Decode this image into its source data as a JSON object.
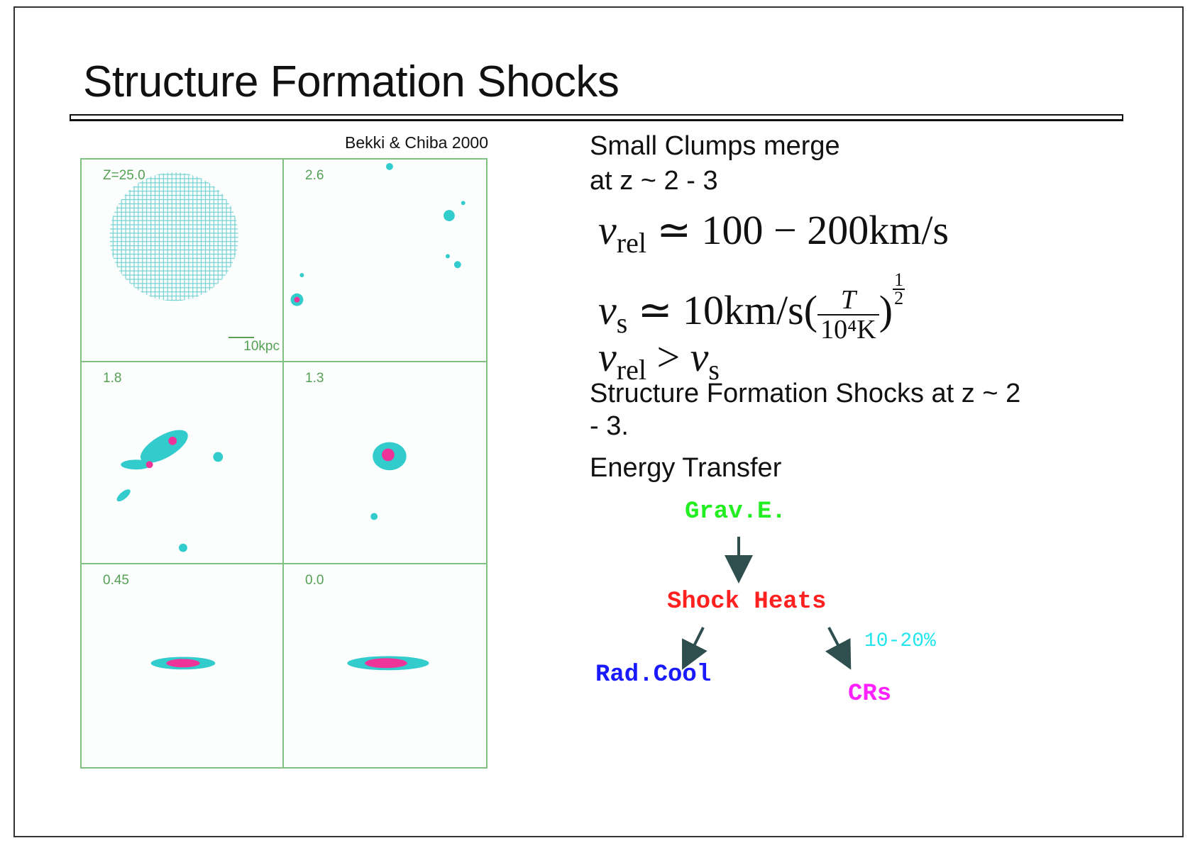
{
  "title": "Structure Formation Shocks",
  "credit": "Bekki & Chiba 2000",
  "panels": [
    {
      "label": "Z=25.0"
    },
    {
      "label": "2.6"
    },
    {
      "label": "1.8"
    },
    {
      "label": "1.3"
    },
    {
      "label": "0.45"
    },
    {
      "label": "0.0"
    }
  ],
  "scale_label": "10kpc",
  "bullets": {
    "clumps_line1": "Small Clumps merge",
    "clumps_line2": "at z ~ 2 - 3",
    "shocks_line1": "Structure Formation Shocks at z ~ 2",
    "shocks_line2": "- 3.",
    "energy": "Energy Transfer"
  },
  "equations": {
    "eq1": {
      "var": "v",
      "sub": "rel",
      "rel": "≃",
      "rhs": "100 − 200km/s"
    },
    "eq2": {
      "var": "v",
      "sub": "s",
      "rel": "≃",
      "rhs": "10km/s(",
      "frac_num": "T",
      "frac_den": "10⁴K",
      "close": ")",
      "exp_num": "1",
      "exp_den": "2"
    },
    "eq3": {
      "var": "v",
      "sub": "rel",
      "rel": ">",
      "var2": "v",
      "sub2": "s"
    }
  },
  "flow": {
    "grav": "Grav.E.",
    "shock": "Shock Heats",
    "rad": "Rad.Cool",
    "crs": "CRs",
    "fraction": "10-20%"
  },
  "colors": {
    "grav": "#22ee22",
    "shock": "#ff2020",
    "rad": "#1a1aff",
    "crs": "#ff22ff",
    "fraction": "#22e5ee",
    "arrow": "#2f4f4f",
    "cyan": "#33cccc",
    "magenta": "#ee3399"
  }
}
